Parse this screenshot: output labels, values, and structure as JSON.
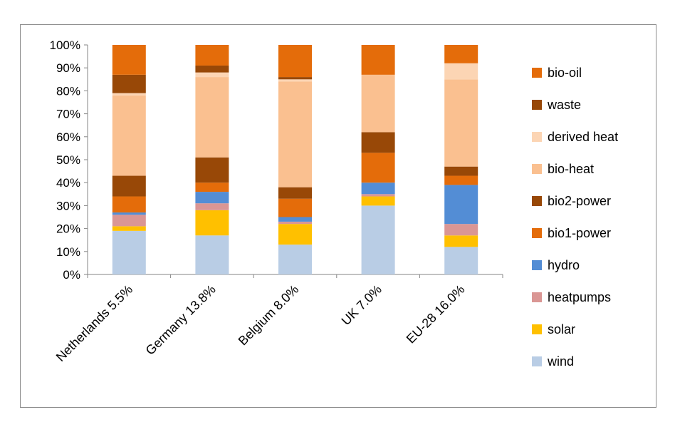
{
  "chart_data": {
    "type": "bar",
    "stacked": true,
    "percent": true,
    "title": "",
    "xlabel": "",
    "ylabel": "",
    "ylim": [
      0,
      100
    ],
    "yticks": [
      "0%",
      "10%",
      "20%",
      "30%",
      "40%",
      "50%",
      "60%",
      "70%",
      "80%",
      "90%",
      "100%"
    ],
    "grid": false,
    "legend_position": "right",
    "categories": [
      "Netherlands  5.5%",
      "Germany  13.8%",
      "Belgium  8.0%",
      "UK  7.0%",
      "EU-28  16.0%"
    ],
    "series": [
      {
        "name": "wind",
        "color": "#b9cde5",
        "values": [
          19,
          17,
          13,
          30,
          12
        ]
      },
      {
        "name": "solar",
        "color": "#ffc000",
        "values": [
          2,
          11,
          9,
          4,
          5
        ]
      },
      {
        "name": "heatpumps",
        "color": "#da9694",
        "values": [
          5,
          3,
          1,
          1,
          5
        ]
      },
      {
        "name": "hydro",
        "color": "#538dd5",
        "values": [
          1,
          5,
          2,
          5,
          17
        ]
      },
      {
        "name": "bio1-power",
        "color": "#e46c0a",
        "values": [
          7,
          4,
          8,
          13,
          4
        ]
      },
      {
        "name": "bio2-power",
        "color": "#984807",
        "values": [
          9,
          11,
          5,
          9,
          4
        ]
      },
      {
        "name": "bio-heat",
        "color": "#fac090",
        "values": [
          35,
          35,
          46,
          25,
          38
        ]
      },
      {
        "name": "derived heat",
        "color": "#fcd5b4",
        "values": [
          1,
          2,
          1,
          0,
          7
        ]
      },
      {
        "name": "waste",
        "color": "#984807",
        "values": [
          8,
          3,
          1,
          0,
          0
        ]
      },
      {
        "name": "bio-oil",
        "color": "#e46c0a",
        "values": [
          13,
          9,
          14,
          13,
          8
        ]
      }
    ]
  }
}
